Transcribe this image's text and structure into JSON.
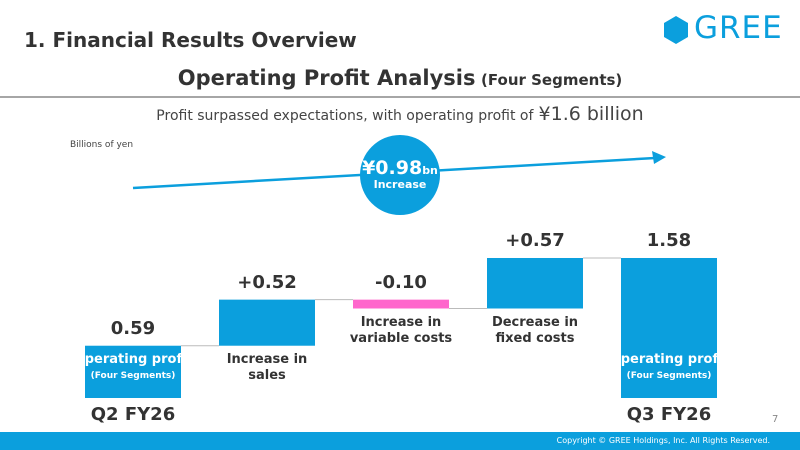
{
  "header": {
    "section": "1. Financial Results Overview",
    "logo": "GREE"
  },
  "chart_data": {
    "type": "waterfall",
    "title": "Operating Profit Analysis",
    "title_note": "(Four Segments)",
    "subtitle": "Profit surpassed expectations, with operating profit of",
    "subtitle_highlight": "¥1.6 billion",
    "unit_label": "Billions of yen",
    "callout": {
      "value": "¥0.98",
      "unit": "bn",
      "text": "Increase"
    },
    "categories": [
      "Operating profit",
      "Increase in sales",
      "Increase in variable costs",
      "Decrease in fixed costs",
      "Operating profit"
    ],
    "category_notes": [
      "(Four Segments)",
      null,
      null,
      null,
      "(Four Segments)"
    ],
    "periods": [
      "Q2 FY26",
      null,
      null,
      null,
      "Q3 FY26"
    ],
    "measures": [
      "total",
      "relative",
      "relative",
      "relative",
      "total"
    ],
    "values": [
      0.59,
      0.52,
      -0.1,
      0.57,
      1.58
    ],
    "value_labels": [
      "0.59",
      "+0.52",
      "-0.10",
      "+0.57",
      "1.58"
    ],
    "colors": [
      "#0b9fdd",
      "#0b9fdd",
      "#ff66cc",
      "#0b9fdd",
      "#0b9fdd"
    ],
    "ylim": [
      0,
      1.8
    ]
  },
  "footer": {
    "page": "7",
    "copyright": "Copyright © GREE Holdings, Inc. All Rights Reserved."
  }
}
